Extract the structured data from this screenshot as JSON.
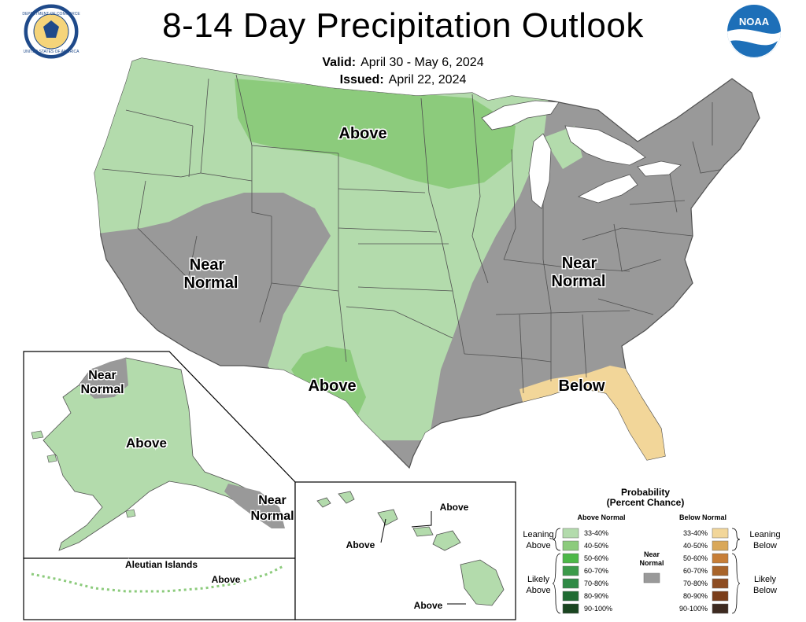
{
  "title": "8-14 Day Precipitation Outlook",
  "valid": {
    "label": "Valid:",
    "value": "April 30 - May 6, 2024"
  },
  "issued": {
    "label": "Issued:",
    "value": "April 22, 2024"
  },
  "logos": {
    "commerce": {
      "icon": "department-of-commerce-seal-icon",
      "text": "DEPARTMENT OF COMMERCE UNITED STATES OF AMERICA"
    },
    "noaa": {
      "icon": "noaa-logo-icon",
      "text": "NOAA"
    }
  },
  "colors": {
    "above_33_40": "#b3dbac",
    "above_40_50": "#8ccb7c",
    "above_50_60": "#4db848",
    "above_60_70": "#3c9a4a",
    "above_70_80": "#2f8a45",
    "above_80_90": "#1f6b32",
    "above_90_100": "#1a4520",
    "near_normal": "#999999",
    "below_33_40": "#f2d699",
    "below_40_50": "#d9a85a",
    "below_50_60": "#c77e37",
    "below_60_70": "#a8642a",
    "below_70_80": "#8e4d22",
    "below_80_90": "#7a3d1a",
    "below_90_100": "#3d2a20",
    "land_outline": "#505050",
    "lakes": "#ffffff"
  },
  "regions": {
    "conus": [
      {
        "label": "Above",
        "category": "Leaning Above",
        "probability": "40-50%",
        "area": "Northern Plains / Upper Midwest"
      },
      {
        "label": "Near Normal",
        "category": "Near Normal",
        "area": "Great Basin / Desert Southwest"
      },
      {
        "label": "Near Normal",
        "category": "Near Normal",
        "area": "East"
      },
      {
        "label": "Above",
        "category": "Leaning Above",
        "probability": "40-50%",
        "area": "West Texas"
      },
      {
        "label": "Below",
        "category": "Leaning Below",
        "probability": "33-40%",
        "area": "Florida"
      }
    ],
    "alaska": [
      {
        "label": "Near Normal",
        "category": "Near Normal",
        "area": "Northwest Alaska"
      },
      {
        "label": "Above",
        "category": "Leaning Above",
        "probability": "33-40%",
        "area": "Mainland Alaska"
      },
      {
        "label": "Near Normal",
        "category": "Near Normal",
        "area": "Southeast Alaska"
      }
    ],
    "aleutians": {
      "title": "Aleutian Islands",
      "label": "Above"
    },
    "hawaii": {
      "labels": [
        "Above",
        "Above",
        "Above"
      ]
    }
  },
  "legend": {
    "title_line1": "Probability",
    "title_line2": "(Percent Chance)",
    "above_header": "Above Normal",
    "below_header": "Below Normal",
    "near_normal": "Near Normal",
    "leaning_above": "Leaning Above",
    "likely_above": "Likely Above",
    "leaning_below": "Leaning Below",
    "likely_below": "Likely Below",
    "ranges": [
      "33-40%",
      "40-50%",
      "50-60%",
      "60-70%",
      "70-80%",
      "80-90%",
      "90-100%"
    ]
  }
}
